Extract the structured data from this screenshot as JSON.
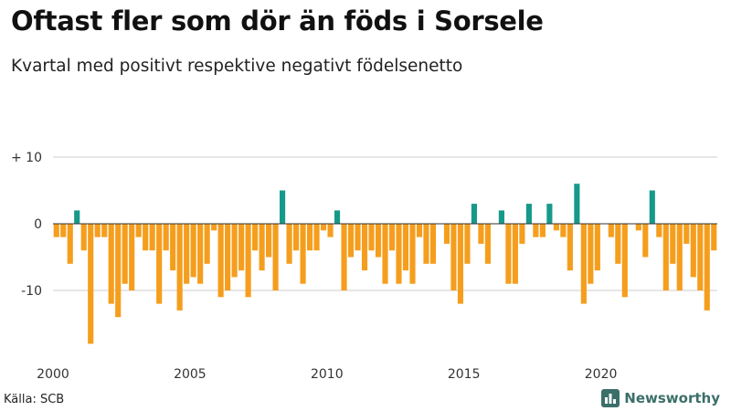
{
  "title": "Oftast fler som dör än föds i Sorsele",
  "subtitle": "Kvartal med positivt respektive negativt födelsenetto",
  "source": "Källa: SCB",
  "brand": "Newsworthy",
  "colors": {
    "negative": "#f59e1d",
    "positive": "#17998a",
    "grid": "#cccccc",
    "axis": "#333333"
  },
  "chart_data": {
    "type": "bar",
    "title": "Oftast fler som dör än föds i Sorsele",
    "subtitle": "Kvartal med positivt respektive negativt födelsenetto",
    "xlabel": "",
    "ylabel": "",
    "ylim": [
      -18,
      14
    ],
    "yticks": [
      {
        "value": 10,
        "label": "+ 10"
      },
      {
        "value": 0,
        "label": "0"
      },
      {
        "value": -10,
        "label": "-10"
      }
    ],
    "x_start": 2000,
    "periods_per_year": 4,
    "xticks": [
      {
        "value": 2000,
        "label": "2000"
      },
      {
        "value": 2005,
        "label": "2005"
      },
      {
        "value": 2010,
        "label": "2010"
      },
      {
        "value": 2015,
        "label": "2015"
      },
      {
        "value": 2020,
        "label": "2020"
      }
    ],
    "grid": true,
    "values": [
      -2,
      -2,
      -6,
      2,
      -4,
      -18,
      -2,
      -2,
      -12,
      -14,
      -9,
      -10,
      -2,
      -4,
      -4,
      -12,
      -4,
      -7,
      -13,
      -9,
      -8,
      -9,
      -6,
      -1,
      -11,
      -10,
      -8,
      -7,
      -11,
      -4,
      -7,
      -5,
      -10,
      5,
      -6,
      -4,
      -9,
      -4,
      -4,
      -1,
      -2,
      2,
      -10,
      -5,
      -4,
      -7,
      -4,
      -5,
      -9,
      -4,
      -9,
      -7,
      -9,
      -2,
      -6,
      -6,
      0,
      -3,
      -10,
      -12,
      -6,
      3,
      -3,
      -6,
      0,
      2,
      -9,
      -9,
      -3,
      3,
      -2,
      -2,
      3,
      -1,
      -2,
      -7,
      6,
      -12,
      -9,
      -7,
      0,
      -2,
      -6,
      -11,
      0,
      -1,
      -5,
      5,
      -2,
      -10,
      -6,
      -10,
      -3,
      -8,
      -10,
      -13,
      -4
    ]
  }
}
